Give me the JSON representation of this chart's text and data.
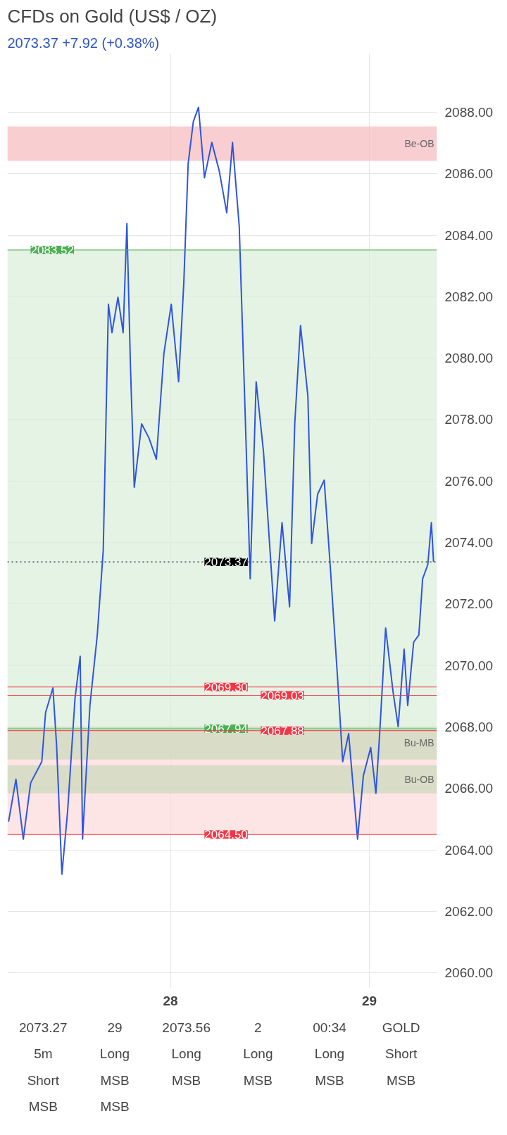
{
  "chart_data": {
    "type": "line",
    "title": "CFDs on Gold (US$ / OZ)",
    "subtitle": "2073.37  +7.92 (+0.38%)",
    "x": [
      27.186,
      27.223,
      27.26,
      27.297,
      27.353,
      27.372,
      27.409,
      27.428,
      27.454,
      27.483,
      27.52,
      27.546,
      27.558,
      27.595,
      27.632,
      27.662,
      27.688,
      27.706,
      27.736,
      27.762,
      27.781,
      27.799,
      27.818,
      27.855,
      27.892,
      27.929,
      27.967,
      28.004,
      28.041,
      28.067,
      28.089,
      28.115,
      28.141,
      28.171,
      28.208,
      28.245,
      28.283,
      28.312,
      28.346,
      28.375,
      28.401,
      28.431,
      28.468,
      28.524,
      28.561,
      28.599,
      28.625,
      28.654,
      28.691,
      28.71,
      28.74,
      28.773,
      28.803,
      28.84,
      28.866,
      28.896,
      28.941,
      28.97,
      29.007,
      29.033,
      29.052,
      29.082,
      29.119,
      29.145,
      29.175,
      29.193,
      29.223,
      29.249,
      29.268,
      29.294,
      29.312,
      29.323
    ],
    "series": [
      {
        "color": "#2f55e0",
        "values": [
          2064.92,
          2066.3,
          2064.35,
          2066.18,
          2066.87,
          2068.47,
          2069.27,
          2067.33,
          2063.21,
          2065.27,
          2068.93,
          2070.3,
          2064.35,
          2068.7,
          2070.99,
          2073.74,
          2081.75,
          2080.83,
          2081.98,
          2080.83,
          2084.38,
          2079.69,
          2075.8,
          2077.86,
          2077.4,
          2076.71,
          2080.15,
          2081.75,
          2079.23,
          2082.44,
          2086.33,
          2087.7,
          2088.16,
          2085.87,
          2087.02,
          2086.1,
          2084.73,
          2087.02,
          2084.27,
          2078.32,
          2072.82,
          2079.23,
          2076.94,
          2071.45,
          2074.65,
          2071.91,
          2077.86,
          2081.06,
          2078.77,
          2073.97,
          2075.57,
          2076.03,
          2073.28,
          2069.62,
          2066.87,
          2067.78,
          2064.35,
          2066.41,
          2067.33,
          2065.84,
          2067.78,
          2071.22,
          2069.16,
          2068.01,
          2070.53,
          2068.7,
          2070.76,
          2070.99,
          2072.82,
          2073.28,
          2074.65,
          2073.37
        ]
      }
    ],
    "xlim": [
      27.18,
      29.34
    ],
    "ylim": [
      2059.5,
      2089.9
    ],
    "xticks": [
      {
        "value": 28,
        "label": "28"
      },
      {
        "value": 29,
        "label": "29"
      }
    ],
    "yticks": [
      {
        "value": 2060,
        "label": "2060.00"
      },
      {
        "value": 2062,
        "label": "2062.00"
      },
      {
        "value": 2064,
        "label": "2064.00"
      },
      {
        "value": 2066,
        "label": "2066.00"
      },
      {
        "value": 2068,
        "label": "2068.00"
      },
      {
        "value": 2070,
        "label": "2070.00"
      },
      {
        "value": 2072,
        "label": "2072.00"
      },
      {
        "value": 2074,
        "label": "2074.00"
      },
      {
        "value": 2076,
        "label": "2076.00"
      },
      {
        "value": 2078,
        "label": "2078.00"
      },
      {
        "value": 2080,
        "label": "2080.00"
      },
      {
        "value": 2082,
        "label": "2082.00"
      },
      {
        "value": 2084,
        "label": "2084.00"
      },
      {
        "value": 2086,
        "label": "2086.00"
      },
      {
        "value": 2088,
        "label": "2088.00"
      }
    ],
    "grid": true,
    "bands": [
      {
        "axis": "y",
        "from": 2067.94,
        "to": 2083.52,
        "color": "#d8eed9"
      },
      {
        "axis": "y",
        "from": 2064.5,
        "to": 2067.88,
        "color": "#fcd8da"
      },
      {
        "axis": "y",
        "from": 2086.42,
        "to": 2087.54,
        "label": "Be-OB",
        "color": "#f7b9bc"
      },
      {
        "axis": "y",
        "from": 2066.94,
        "to": 2068.01,
        "label": "Bu-MB",
        "color": "#c9d8b9"
      },
      {
        "axis": "y",
        "from": 2065.84,
        "to": 2066.75,
        "label": "Bu-OB",
        "color": "#c9d8b9"
      }
    ],
    "ref_lines": [
      {
        "axis": "y",
        "value": 2083.52,
        "label": "2083.52",
        "color": "#4caf50",
        "line_style": "solid"
      },
      {
        "axis": "y",
        "value": 2073.37,
        "label": "2073.37",
        "color": "#000000",
        "line_style": "dotted"
      },
      {
        "axis": "y",
        "value": 2069.3,
        "label": "2069.30",
        "color": "#f23645",
        "line_style": "solid"
      },
      {
        "axis": "y",
        "value": 2069.03,
        "label": "2069.03",
        "color": "#f23645",
        "line_style": "solid"
      },
      {
        "axis": "y",
        "value": 2067.94,
        "label": "2067.94",
        "color": "#4caf50",
        "line_style": "solid"
      },
      {
        "axis": "y",
        "value": 2067.88,
        "label": "2067.88",
        "color": "#f23645",
        "line_style": "solid"
      },
      {
        "axis": "y",
        "value": 2064.5,
        "label": "2064.50",
        "color": "#f23645",
        "line_style": "solid"
      }
    ],
    "annotations": [
      "2073.27",
      "29",
      "2073.56",
      "2",
      "00:34",
      "GOLD",
      "5m",
      "Long",
      "Long",
      "Long",
      "Long",
      "Short",
      "Short",
      "MSB",
      "MSB",
      "MSB",
      "MSB",
      "MSB",
      "MSB",
      "MSB"
    ]
  }
}
